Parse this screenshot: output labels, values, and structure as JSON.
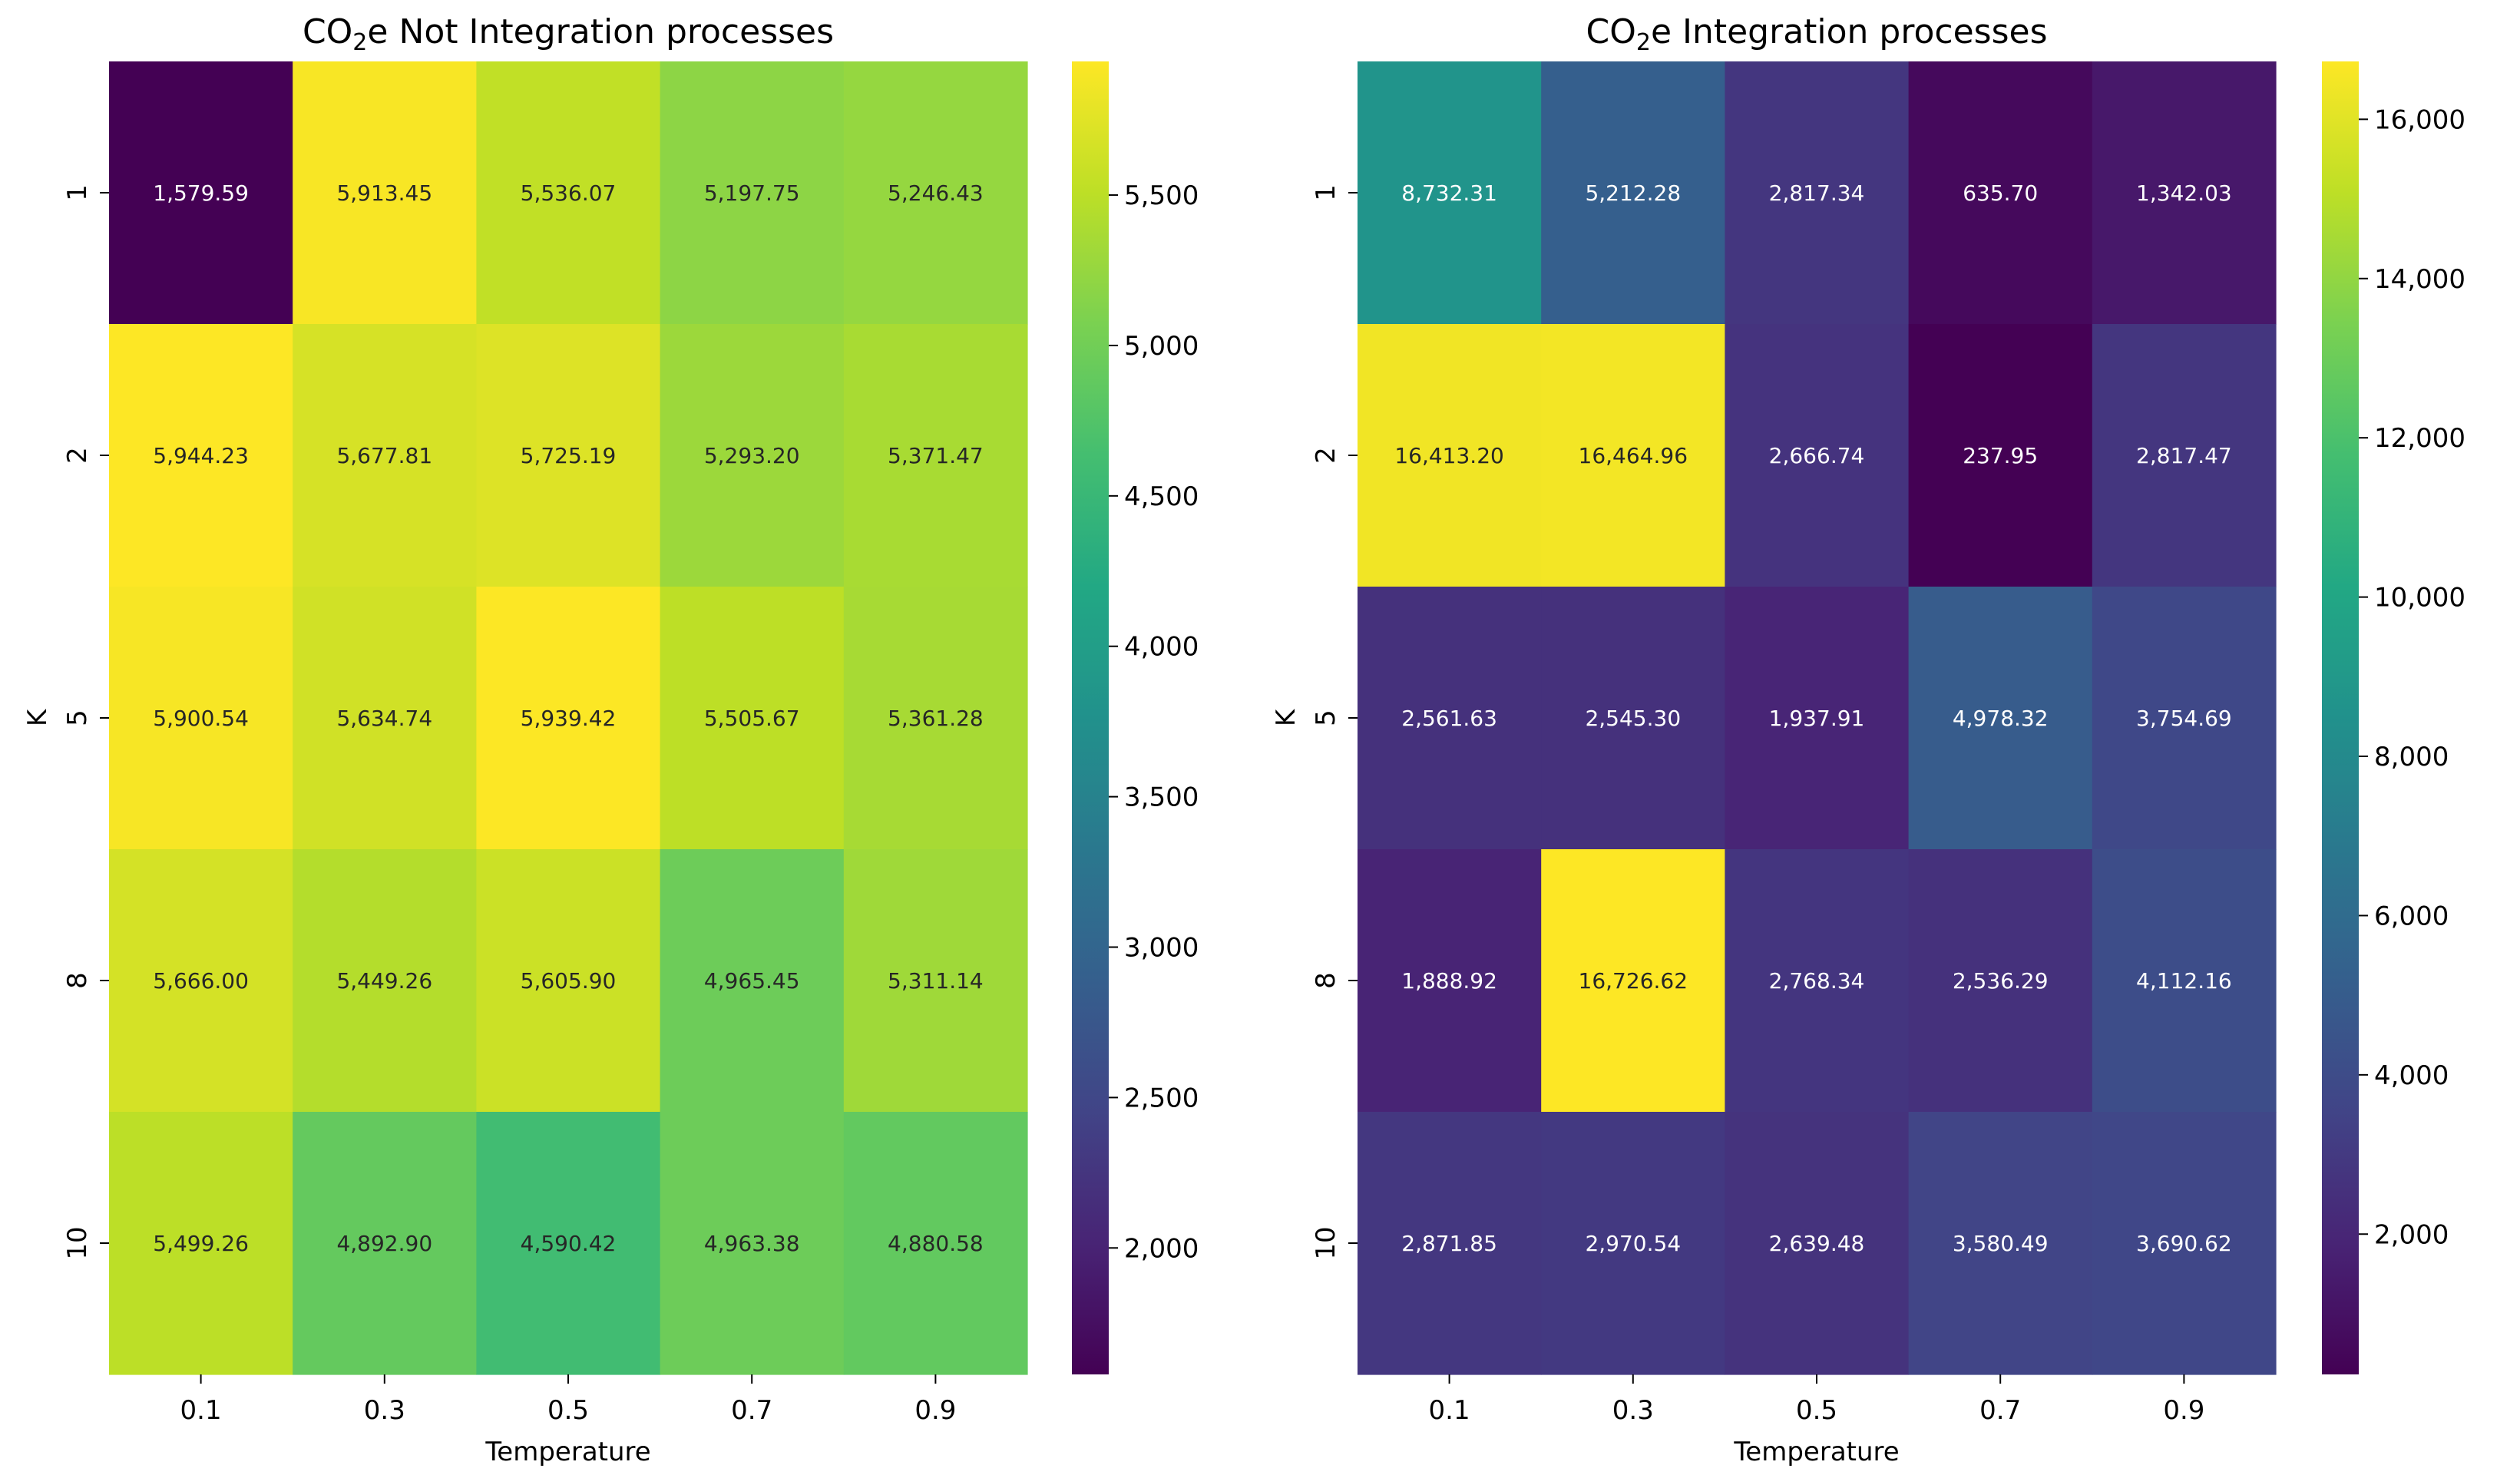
{
  "chart_data": [
    {
      "type": "heatmap",
      "title_parts": [
        "CO",
        "2",
        "e Not Integration processes"
      ],
      "xlabel": "Temperature",
      "ylabel": "K",
      "x_ticks": [
        "0.1",
        "0.3",
        "0.5",
        "0.7",
        "0.9"
      ],
      "y_ticks": [
        "1",
        "2",
        "5",
        "8",
        "10"
      ],
      "values": [
        [
          1579.59,
          5913.45,
          5536.07,
          5197.75,
          5246.43
        ],
        [
          5944.23,
          5677.81,
          5725.19,
          5293.2,
          5371.47
        ],
        [
          5900.54,
          5634.74,
          5939.42,
          5505.67,
          5361.28
        ],
        [
          5666.0,
          5449.26,
          5605.9,
          4965.45,
          5311.14
        ],
        [
          5499.26,
          4892.9,
          4590.42,
          4963.38,
          4880.58
        ]
      ],
      "value_labels": [
        [
          "1,579.59",
          "5,913.45",
          "5,536.07",
          "5,197.75",
          "5,246.43"
        ],
        [
          "5,944.23",
          "5,677.81",
          "5,725.19",
          "5,293.20",
          "5,371.47"
        ],
        [
          "5,900.54",
          "5,634.74",
          "5,939.42",
          "5,505.67",
          "5,361.28"
        ],
        [
          "5,666.00",
          "5,449.26",
          "5,605.90",
          "4,965.45",
          "5,311.14"
        ],
        [
          "5,499.26",
          "4,892.90",
          "4,590.42",
          "4,963.38",
          "4,880.58"
        ]
      ],
      "colormap": "viridis",
      "color_range": [
        1579.59,
        5944.23
      ],
      "colorbar_ticks": [
        2000,
        2500,
        3000,
        3500,
        4000,
        4500,
        5000,
        5500
      ],
      "colorbar_tick_labels": [
        "2,000",
        "2,500",
        "3,000",
        "3,500",
        "4,000",
        "4,500",
        "5,000",
        "5,500"
      ]
    },
    {
      "type": "heatmap",
      "title_parts": [
        "CO",
        "2",
        "e Integration processes"
      ],
      "xlabel": "Temperature",
      "ylabel": "K",
      "x_ticks": [
        "0.1",
        "0.3",
        "0.5",
        "0.7",
        "0.9"
      ],
      "y_ticks": [
        "1",
        "2",
        "5",
        "8",
        "10"
      ],
      "values": [
        [
          8732.31,
          5212.28,
          2817.34,
          635.7,
          1342.03
        ],
        [
          16413.2,
          16464.96,
          2666.74,
          237.95,
          2817.47
        ],
        [
          2561.63,
          2545.3,
          1937.91,
          4978.32,
          3754.69
        ],
        [
          1888.92,
          16726.62,
          2768.34,
          2536.29,
          4112.16
        ],
        [
          2871.85,
          2970.54,
          2639.48,
          3580.49,
          3690.62
        ]
      ],
      "value_labels": [
        [
          "8,732.31",
          "5,212.28",
          "2,817.34",
          "635.70",
          "1,342.03"
        ],
        [
          "16,413.20",
          "16,464.96",
          "2,666.74",
          "237.95",
          "2,817.47"
        ],
        [
          "2,561.63",
          "2,545.30",
          "1,937.91",
          "4,978.32",
          "3,754.69"
        ],
        [
          "1,888.92",
          "16,726.62",
          "2,768.34",
          "2,536.29",
          "4,112.16"
        ],
        [
          "2,871.85",
          "2,970.54",
          "2,639.48",
          "3,580.49",
          "3,690.62"
        ]
      ],
      "colormap": "viridis",
      "color_range": [
        237.95,
        16726.62
      ],
      "colorbar_ticks": [
        2000,
        4000,
        6000,
        8000,
        10000,
        12000,
        14000,
        16000
      ],
      "colorbar_tick_labels": [
        "2,000",
        "4,000",
        "6,000",
        "8,000",
        "10,000",
        "12,000",
        "14,000",
        "16,000"
      ]
    }
  ]
}
